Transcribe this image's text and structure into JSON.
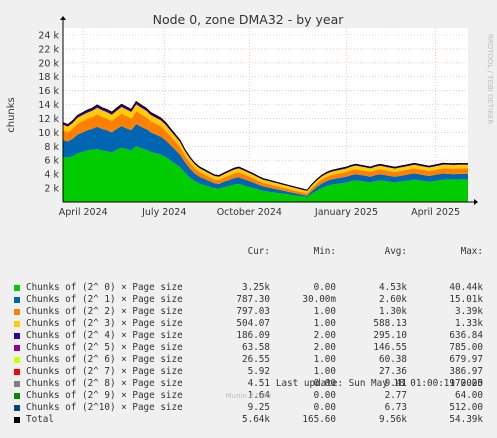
{
  "chart_data": {
    "type": "area",
    "title": "Node 0, zone DMA32 - by year",
    "ylabel": "chunks",
    "ylim": [
      0,
      25000
    ],
    "yticks": [
      {
        "v": 2000,
        "l": "2 k"
      },
      {
        "v": 4000,
        "l": "4 k"
      },
      {
        "v": 6000,
        "l": "6 k"
      },
      {
        "v": 8000,
        "l": "8 k"
      },
      {
        "v": 10000,
        "l": "10 k"
      },
      {
        "v": 12000,
        "l": "12 k"
      },
      {
        "v": 14000,
        "l": "14 k"
      },
      {
        "v": 16000,
        "l": "16 k"
      },
      {
        "v": 18000,
        "l": "18 k"
      },
      {
        "v": 20000,
        "l": "20 k"
      },
      {
        "v": 22000,
        "l": "22 k"
      },
      {
        "v": 24000,
        "l": "24 k"
      }
    ],
    "xticks": [
      "April 2024",
      "July 2024",
      "October 2024",
      "January 2025",
      "April 2025"
    ],
    "xtick_pos": [
      0.05,
      0.25,
      0.46,
      0.7,
      0.92
    ],
    "grid": true,
    "stack_order": [
      "Chunks of (2^ 0) × Page size",
      "Chunks of (2^ 1) × Page size",
      "Chunks of (2^ 2) × Page size",
      "Chunks of (2^ 3) × Page size",
      "Chunks of (2^ 4) × Page size"
    ],
    "x": [
      0,
      5,
      10,
      15,
      20,
      25,
      30,
      35,
      40,
      45,
      50,
      55,
      60,
      65,
      70,
      75,
      80,
      85,
      90,
      95,
      100,
      105,
      110,
      115,
      120,
      125,
      130,
      135,
      140,
      145,
      150,
      155,
      160,
      165,
      170,
      175,
      180,
      185,
      190,
      195,
      200,
      205,
      210,
      215,
      220,
      225,
      230,
      235,
      240,
      245,
      250,
      255,
      260,
      265,
      270,
      275,
      280,
      285,
      290,
      295,
      300,
      305,
      310,
      315,
      320,
      325,
      330,
      335,
      340,
      345,
      350,
      355,
      360,
      365,
      370,
      375,
      380,
      385,
      390,
      395,
      400,
      405,
      410,
      415
    ],
    "series": [
      {
        "name": "Chunks of (2^ 0) × Page size",
        "values": [
          6500,
          6400,
          6600,
          7000,
          7200,
          7400,
          7500,
          7600,
          7400,
          7300,
          7100,
          7500,
          7800,
          7600,
          7400,
          8000,
          7700,
          7500,
          7200,
          7000,
          6800,
          6500,
          6000,
          5500,
          5000,
          4200,
          3500,
          3000,
          2600,
          2400,
          2200,
          2000,
          1900,
          2100,
          2300,
          2500,
          2600,
          2400,
          2200,
          2000,
          1800,
          1600,
          1500,
          1400,
          1300,
          1200,
          1100,
          1000,
          900,
          800,
          700,
          1200,
          1600,
          2000,
          2300,
          2500,
          2600,
          2700,
          2800,
          3000,
          3100,
          3000,
          2900,
          2800,
          3000,
          3100,
          3000,
          2900,
          2800,
          2900,
          3000,
          3100,
          3200,
          3100,
          3000,
          2900,
          3000,
          3100,
          3200,
          3250,
          3200,
          3250,
          3250,
          3250
        ]
      },
      {
        "name": "Chunks of (2^ 1) × Page size",
        "values": [
          2400,
          2300,
          2500,
          2700,
          2800,
          2900,
          3000,
          3200,
          3100,
          3000,
          2900,
          3000,
          3100,
          3000,
          2900,
          3200,
          3100,
          3000,
          2800,
          2700,
          2600,
          2400,
          2200,
          2000,
          1800,
          1500,
          1300,
          1100,
          1000,
          900,
          800,
          700,
          700,
          800,
          850,
          900,
          950,
          900,
          850,
          800,
          700,
          650,
          600,
          550,
          500,
          450,
          400,
          350,
          300,
          250,
          200,
          400,
          550,
          650,
          700,
          750,
          780,
          800,
          820,
          850,
          900,
          880,
          860,
          840,
          860,
          880,
          860,
          840,
          820,
          840,
          860,
          880,
          900,
          880,
          860,
          840,
          860,
          880,
          900,
          787,
          800,
          790,
          787,
          787
        ]
      },
      {
        "name": "Chunks of (2^ 2) × Page size",
        "values": [
          1400,
          1350,
          1450,
          1550,
          1600,
          1650,
          1700,
          1800,
          1750,
          1700,
          1650,
          1700,
          1800,
          1750,
          1700,
          1850,
          1800,
          1700,
          1600,
          1550,
          1500,
          1400,
          1300,
          1200,
          1100,
          950,
          850,
          750,
          700,
          650,
          600,
          550,
          550,
          600,
          650,
          700,
          720,
          700,
          650,
          600,
          550,
          500,
          480,
          460,
          440,
          420,
          400,
          380,
          360,
          340,
          320,
          420,
          500,
          560,
          600,
          620,
          640,
          660,
          680,
          700,
          720,
          710,
          700,
          690,
          710,
          720,
          710,
          700,
          690,
          700,
          710,
          720,
          740,
          730,
          720,
          710,
          720,
          740,
          760,
          797,
          790,
          797,
          797,
          797
        ]
      },
      {
        "name": "Chunks of (2^ 3) × Page size",
        "values": [
          800,
          780,
          820,
          860,
          880,
          900,
          920,
          950,
          930,
          920,
          900,
          920,
          950,
          940,
          930,
          980,
          960,
          940,
          900,
          880,
          860,
          820,
          780,
          740,
          700,
          640,
          600,
          560,
          540,
          520,
          500,
          480,
          480,
          500,
          520,
          540,
          560,
          540,
          520,
          500,
          480,
          460,
          450,
          440,
          430,
          420,
          410,
          400,
          390,
          380,
          370,
          400,
          430,
          450,
          470,
          480,
          490,
          500,
          505,
          510,
          515,
          510,
          505,
          500,
          505,
          510,
          505,
          500,
          495,
          500,
          505,
          510,
          515,
          510,
          505,
          500,
          505,
          510,
          510,
          504,
          505,
          504,
          504,
          504
        ]
      },
      {
        "name": "Chunks of (2^ 4) × Page size",
        "values": [
          300,
          290,
          310,
          330,
          340,
          350,
          360,
          380,
          370,
          360,
          350,
          360,
          380,
          370,
          360,
          390,
          380,
          370,
          350,
          340,
          330,
          310,
          290,
          270,
          250,
          230,
          210,
          200,
          190,
          180,
          170,
          160,
          160,
          170,
          180,
          190,
          200,
          190,
          180,
          170,
          160,
          150,
          145,
          140,
          135,
          130,
          125,
          120,
          115,
          110,
          105,
          130,
          150,
          160,
          170,
          175,
          178,
          180,
          182,
          185,
          188,
          187,
          186,
          185,
          186,
          188,
          187,
          186,
          185,
          186,
          187,
          188,
          190,
          188,
          187,
          186,
          187,
          188,
          189,
          186,
          187,
          186,
          186,
          186
        ]
      }
    ]
  },
  "legend": {
    "headers": {
      "cur": "Cur:",
      "min": "Min:",
      "avg": "Avg:",
      "max": "Max:"
    },
    "rows": [
      {
        "label": "Chunks of (2^ 0) × Page size",
        "color": "#00cc00",
        "cur": "3.25k",
        "min": "0.00",
        "avg": "4.53k",
        "max": "40.44k"
      },
      {
        "label": "Chunks of (2^ 1) × Page size",
        "color": "#0066b3",
        "cur": "787.30",
        "min": "30.00m",
        "avg": "2.60k",
        "max": "15.01k"
      },
      {
        "label": "Chunks of (2^ 2) × Page size",
        "color": "#ff8000",
        "cur": "797.03",
        "min": "1.00",
        "avg": "1.30k",
        "max": "3.39k"
      },
      {
        "label": "Chunks of (2^ 3) × Page size",
        "color": "#ffcc00",
        "cur": "504.07",
        "min": "1.00",
        "avg": "588.13",
        "max": "1.33k"
      },
      {
        "label": "Chunks of (2^ 4) × Page size",
        "color": "#330099",
        "cur": "186.09",
        "min": "2.00",
        "avg": "295.10",
        "max": "636.84"
      },
      {
        "label": "Chunks of (2^ 5) × Page size",
        "color": "#990099",
        "cur": "63.58",
        "min": "2.00",
        "avg": "146.55",
        "max": "785.00"
      },
      {
        "label": "Chunks of (2^ 6) × Page size",
        "color": "#ccff00",
        "cur": "26.55",
        "min": "1.00",
        "avg": "60.38",
        "max": "679.97"
      },
      {
        "label": "Chunks of (2^ 7) × Page size",
        "color": "#ff0000",
        "cur": "5.92",
        "min": "1.00",
        "avg": "27.36",
        "max": "386.97"
      },
      {
        "label": "Chunks of (2^ 8) × Page size",
        "color": "#808080",
        "cur": "4.51",
        "min": "0.00",
        "avg": "9.41",
        "max": "170.00"
      },
      {
        "label": "Chunks of (2^ 9) × Page size",
        "color": "#008f00",
        "cur": "1.64",
        "min": "0.00",
        "avg": "2.77",
        "max": "64.00"
      },
      {
        "label": "Chunks of (2^10) × Page size",
        "color": "#00487d",
        "cur": "9.25",
        "min": "0.00",
        "avg": "6.73",
        "max": "512.00"
      },
      {
        "label": "Total",
        "color": "#000000",
        "cur": "5.64k",
        "min": "165.60",
        "avg": "9.56k",
        "max": "54.39k"
      }
    ]
  },
  "footer": {
    "last_update": "Last update: Sun May 18 01:00:19 2025",
    "munin": "Munin 2.0.73",
    "rrdtool": "RRDTOOL / TOBI OETIKER"
  }
}
